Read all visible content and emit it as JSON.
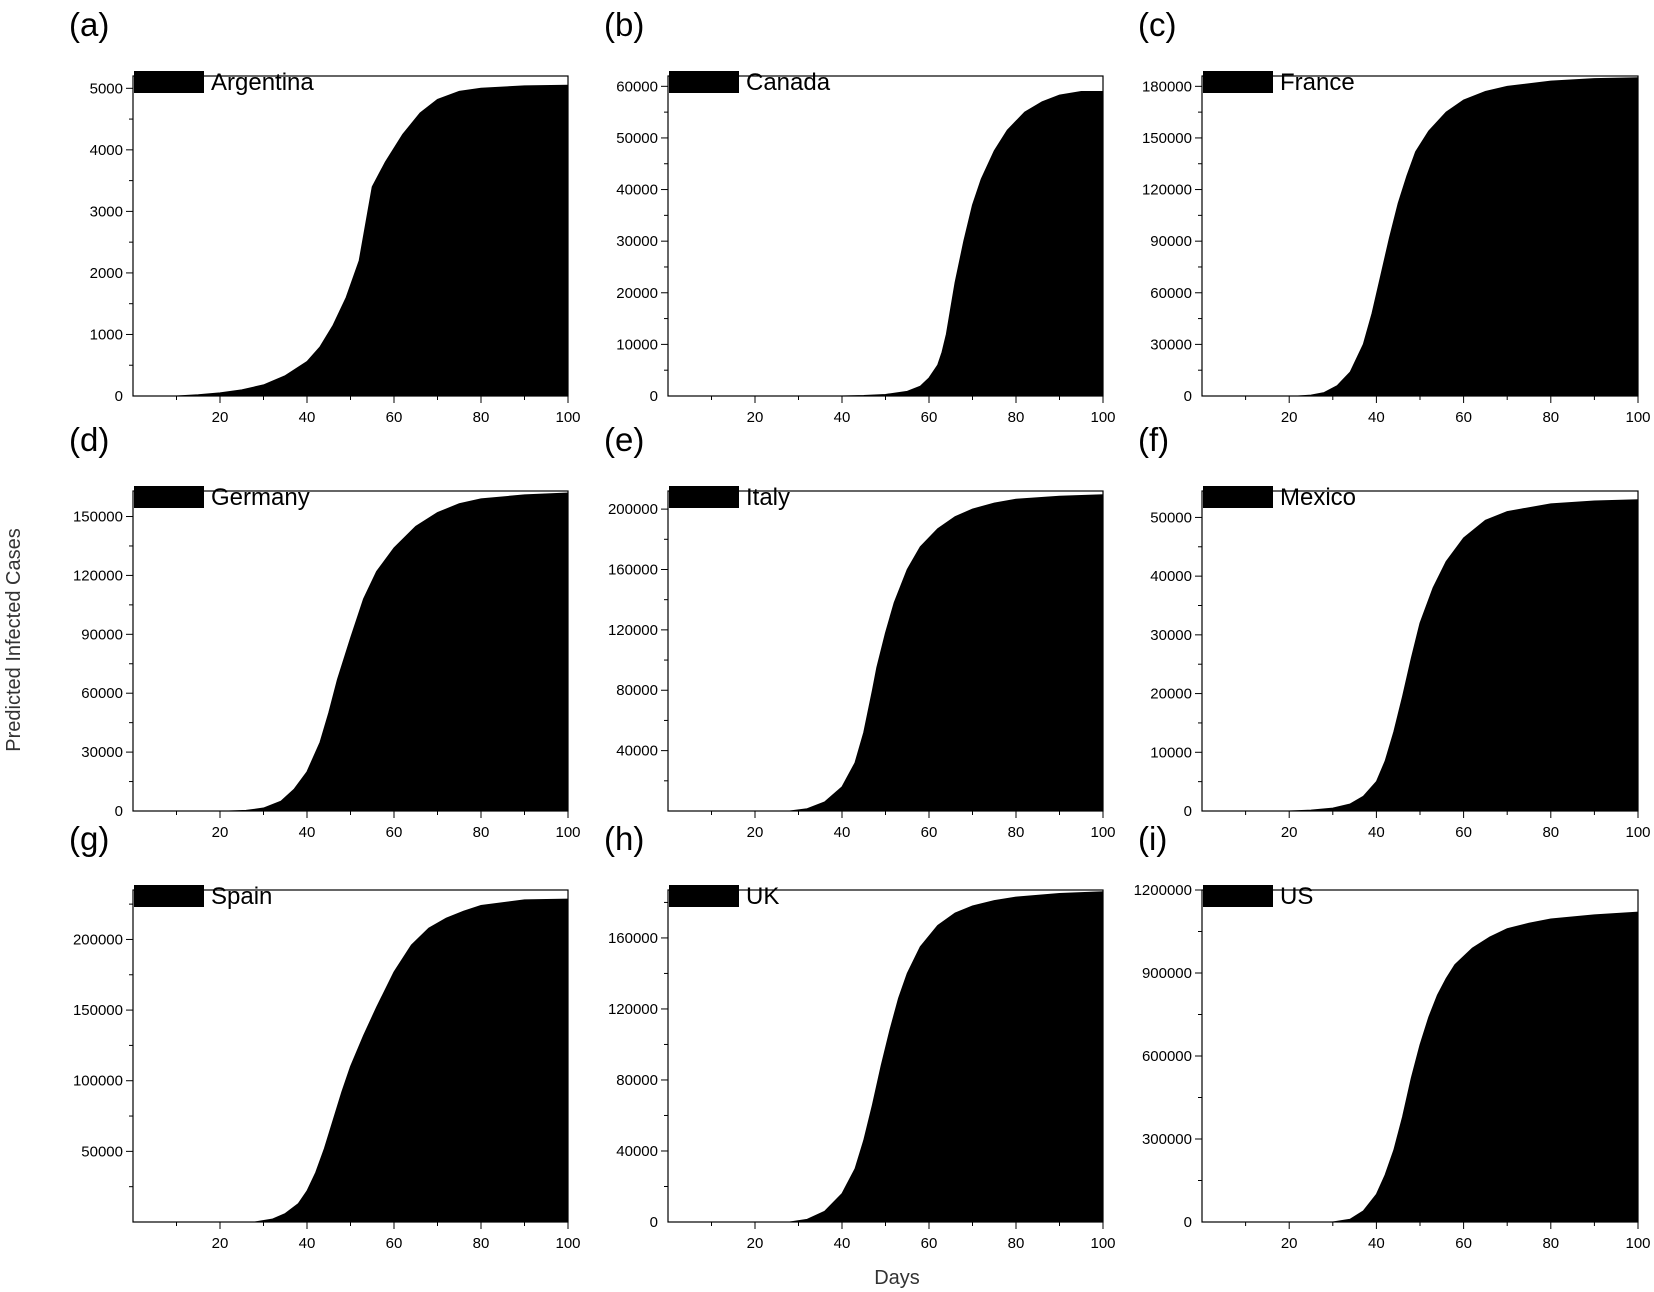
{
  "figure": {
    "ylabel": "Predicted Infected Cases",
    "xlabel": "Days"
  },
  "chart_data": [
    {
      "type": "area",
      "panel": "(a)",
      "legend": "Argentina",
      "xlim": [
        0,
        100
      ],
      "ylim": [
        0,
        5200
      ],
      "xticks": [
        20,
        40,
        60,
        80,
        100
      ],
      "yticks": [
        0,
        1000,
        2000,
        3000,
        4000,
        5000
      ],
      "x": [
        10,
        15,
        20,
        25,
        30,
        35,
        40,
        43,
        46,
        49,
        52,
        54,
        55,
        58,
        62,
        66,
        70,
        75,
        80,
        90,
        100
      ],
      "y": [
        0,
        20,
        50,
        100,
        180,
        330,
        560,
        800,
        1150,
        1600,
        2200,
        3000,
        3400,
        3800,
        4250,
        4600,
        4820,
        4950,
        5000,
        5040,
        5050
      ]
    },
    {
      "type": "area",
      "panel": "(b)",
      "legend": "Canada",
      "xlim": [
        0,
        100
      ],
      "ylim": [
        0,
        62000
      ],
      "xticks": [
        20,
        40,
        60,
        80,
        100
      ],
      "yticks": [
        0,
        10000,
        20000,
        30000,
        40000,
        50000,
        60000
      ],
      "x": [
        30,
        40,
        45,
        50,
        55,
        58,
        60,
        62,
        63,
        64,
        65,
        66,
        68,
        70,
        72,
        75,
        78,
        82,
        86,
        90,
        95,
        98
      ],
      "y": [
        0,
        0,
        100,
        300,
        900,
        1900,
        3500,
        6000,
        8500,
        12000,
        17000,
        22000,
        30000,
        37000,
        42000,
        47500,
        51500,
        55000,
        57000,
        58300,
        59000,
        59000
      ]
    },
    {
      "type": "area",
      "panel": "(c)",
      "legend": "France",
      "xlim": [
        0,
        100
      ],
      "ylim": [
        0,
        186000
      ],
      "xticks": [
        20,
        40,
        60,
        80,
        100
      ],
      "yticks": [
        0,
        30000,
        60000,
        90000,
        120000,
        150000,
        180000
      ],
      "x": [
        22,
        25,
        28,
        31,
        34,
        37,
        39,
        41,
        43,
        45,
        47,
        49,
        52,
        56,
        60,
        65,
        70,
        80,
        90,
        100
      ],
      "y": [
        0,
        500,
        2000,
        6000,
        14000,
        30000,
        48000,
        70000,
        92000,
        112000,
        128000,
        142000,
        154000,
        165000,
        172000,
        177000,
        180000,
        183000,
        184500,
        185000
      ]
    },
    {
      "type": "area",
      "panel": "(d)",
      "legend": "Germany",
      "xlim": [
        0,
        100
      ],
      "ylim": [
        0,
        163000
      ],
      "xticks": [
        20,
        40,
        60,
        80,
        100
      ],
      "yticks": [
        0,
        30000,
        60000,
        90000,
        120000,
        150000
      ],
      "x": [
        22,
        26,
        30,
        34,
        37,
        40,
        43,
        45,
        47,
        50,
        53,
        56,
        60,
        65,
        70,
        75,
        80,
        90,
        100
      ],
      "y": [
        0,
        300,
        1500,
        5000,
        11000,
        20000,
        35000,
        50000,
        67000,
        88000,
        108000,
        122000,
        134000,
        145000,
        152000,
        156500,
        159000,
        161000,
        162000
      ]
    },
    {
      "type": "area",
      "panel": "(e)",
      "legend": "Italy",
      "xlim": [
        0,
        100
      ],
      "ylim": [
        0,
        212000
      ],
      "xticks": [
        20,
        40,
        60,
        80,
        100
      ],
      "yticks": [
        40000,
        80000,
        120000,
        160000,
        200000
      ],
      "x": [
        28,
        32,
        36,
        40,
        43,
        45,
        47,
        48,
        50,
        52,
        55,
        58,
        62,
        66,
        70,
        75,
        80,
        90,
        100
      ],
      "y": [
        0,
        1500,
        6000,
        16000,
        32000,
        52000,
        80000,
        95000,
        118000,
        138000,
        160000,
        175000,
        187000,
        195000,
        200000,
        204000,
        206500,
        208500,
        209500
      ]
    },
    {
      "type": "area",
      "panel": "(f)",
      "legend": "Mexico",
      "xlim": [
        0,
        100
      ],
      "ylim": [
        0,
        54500
      ],
      "xticks": [
        20,
        40,
        60,
        80,
        100
      ],
      "yticks": [
        0,
        10000,
        20000,
        30000,
        40000,
        50000
      ],
      "x": [
        20,
        25,
        30,
        34,
        37,
        40,
        42,
        44,
        46,
        48,
        50,
        53,
        56,
        60,
        65,
        70,
        80,
        90,
        100
      ],
      "y": [
        0,
        150,
        500,
        1200,
        2500,
        5000,
        8500,
        13500,
        19500,
        26000,
        32000,
        38000,
        42500,
        46500,
        49500,
        51000,
        52300,
        52800,
        53000
      ]
    },
    {
      "type": "area",
      "panel": "(g)",
      "legend": "Spain",
      "xlim": [
        0,
        100
      ],
      "ylim": [
        0,
        235000
      ],
      "xticks": [
        20,
        40,
        60,
        80,
        100
      ],
      "yticks": [
        50000,
        100000,
        150000,
        200000
      ],
      "x": [
        28,
        32,
        35,
        38,
        40,
        42,
        44,
        46,
        48,
        50,
        53,
        56,
        60,
        64,
        68,
        72,
        76,
        80,
        90,
        100
      ],
      "y": [
        0,
        2000,
        6000,
        13000,
        22000,
        35000,
        52000,
        72000,
        92000,
        110000,
        132000,
        152000,
        177000,
        196000,
        208000,
        215000,
        220000,
        224000,
        228000,
        228500
      ]
    },
    {
      "type": "area",
      "panel": "(h)",
      "legend": "UK",
      "xlim": [
        0,
        100
      ],
      "ylim": [
        0,
        187000
      ],
      "xticks": [
        20,
        40,
        60,
        80,
        100
      ],
      "yticks": [
        0,
        40000,
        80000,
        120000,
        160000
      ],
      "x": [
        28,
        32,
        36,
        40,
        43,
        45,
        47,
        49,
        51,
        53,
        55,
        58,
        62,
        66,
        70,
        75,
        80,
        90,
        100
      ],
      "y": [
        0,
        1500,
        6000,
        16000,
        30000,
        46000,
        66000,
        88000,
        108000,
        126000,
        140000,
        155000,
        167000,
        174000,
        178000,
        181000,
        183000,
        185000,
        186000
      ]
    },
    {
      "type": "area",
      "panel": "(i)",
      "legend": "US",
      "xlim": [
        0,
        100
      ],
      "ylim": [
        0,
        1200000
      ],
      "xticks": [
        20,
        40,
        60,
        80,
        100
      ],
      "yticks": [
        0,
        300000,
        600000,
        900000,
        1200000
      ],
      "x": [
        30,
        34,
        37,
        40,
        42,
        44,
        46,
        48,
        50,
        52,
        54,
        56,
        58,
        62,
        66,
        70,
        75,
        80,
        90,
        100
      ],
      "y": [
        0,
        10000,
        40000,
        100000,
        170000,
        260000,
        380000,
        520000,
        640000,
        740000,
        820000,
        880000,
        930000,
        990000,
        1030000,
        1060000,
        1080000,
        1095000,
        1110000,
        1120000
      ]
    }
  ]
}
